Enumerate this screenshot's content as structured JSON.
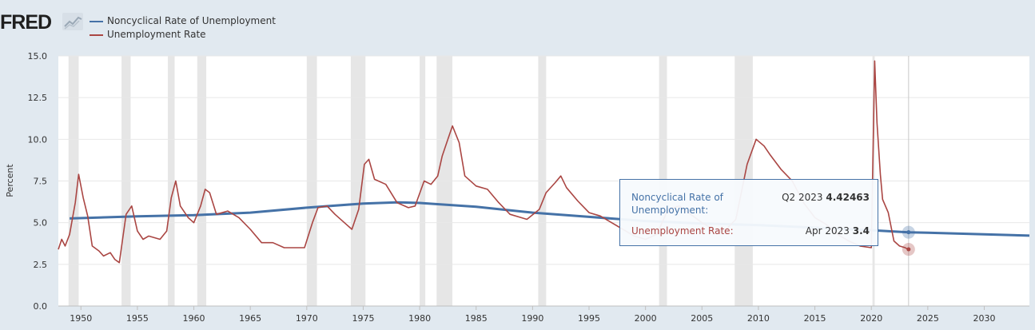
{
  "header": {
    "logo_text": "FRED",
    "logo_icon": "chart-line-icon"
  },
  "legend": [
    {
      "label": "Noncyclical Rate of Unemployment",
      "color": "#4572a7"
    },
    {
      "label": "Unemployment Rate",
      "color": "#aa4643"
    }
  ],
  "tooltip": {
    "rows": [
      {
        "name": "Noncyclical Rate of Unemployment:",
        "period": "Q2 2023",
        "value": "4.42463",
        "color": "#4572a7"
      },
      {
        "name": "Unemployment Rate:",
        "period": "Apr 2023",
        "value": "3.4",
        "color": "#aa4643"
      }
    ]
  },
  "chart_data": {
    "type": "line",
    "title": "",
    "xlabel": "",
    "ylabel": "Percent",
    "xlim": [
      1948,
      2034
    ],
    "ylim": [
      0,
      15
    ],
    "x_ticks": [
      "1950",
      "1955",
      "1960",
      "1965",
      "1970",
      "1975",
      "1980",
      "1985",
      "1990",
      "1995",
      "2000",
      "2005",
      "2010",
      "2015",
      "2020",
      "2025",
      "2030"
    ],
    "y_ticks": [
      "0.0",
      "2.5",
      "5.0",
      "7.5",
      "10.0",
      "12.5",
      "15.0"
    ],
    "grid": true,
    "legend_position": "top-left",
    "recessions": [
      [
        1948.9,
        1949.8
      ],
      [
        1953.6,
        1954.4
      ],
      [
        1957.7,
        1958.3
      ],
      [
        1960.3,
        1961.1
      ],
      [
        1970.0,
        1970.9
      ],
      [
        1973.9,
        1975.2
      ],
      [
        1980.0,
        1980.5
      ],
      [
        1981.5,
        1982.9
      ],
      [
        1990.5,
        1991.2
      ],
      [
        2001.2,
        2001.9
      ],
      [
        2007.9,
        2009.5
      ],
      [
        2020.1,
        2020.3
      ]
    ],
    "series": [
      {
        "name": "Noncyclical Rate of Unemployment",
        "color": "#4572a7",
        "points": [
          [
            1949,
            5.25
          ],
          [
            1955,
            5.38
          ],
          [
            1960,
            5.45
          ],
          [
            1965,
            5.6
          ],
          [
            1970,
            5.9
          ],
          [
            1975,
            6.15
          ],
          [
            1978,
            6.22
          ],
          [
            1980,
            6.18
          ],
          [
            1985,
            5.95
          ],
          [
            1990,
            5.6
          ],
          [
            1995,
            5.35
          ],
          [
            2000,
            5.1
          ],
          [
            2005,
            4.95
          ],
          [
            2010,
            4.85
          ],
          [
            2015,
            4.7
          ],
          [
            2020,
            4.55
          ],
          [
            2023.3,
            4.42463
          ],
          [
            2025,
            4.4
          ],
          [
            2030,
            4.3
          ],
          [
            2034,
            4.22
          ]
        ]
      },
      {
        "name": "Unemployment Rate",
        "color": "#aa4643",
        "points": [
          [
            1948,
            3.4
          ],
          [
            1948.3,
            4.0
          ],
          [
            1948.6,
            3.6
          ],
          [
            1949,
            4.3
          ],
          [
            1949.5,
            6.2
          ],
          [
            1949.8,
            7.9
          ],
          [
            1950.2,
            6.5
          ],
          [
            1950.6,
            5.4
          ],
          [
            1951,
            3.6
          ],
          [
            1951.6,
            3.3
          ],
          [
            1952,
            3.0
          ],
          [
            1952.6,
            3.2
          ],
          [
            1953,
            2.8
          ],
          [
            1953.4,
            2.6
          ],
          [
            1954,
            5.5
          ],
          [
            1954.5,
            6.0
          ],
          [
            1955,
            4.5
          ],
          [
            1955.5,
            4.0
          ],
          [
            1956,
            4.2
          ],
          [
            1957,
            4.0
          ],
          [
            1957.6,
            4.5
          ],
          [
            1958,
            6.5
          ],
          [
            1958.4,
            7.5
          ],
          [
            1958.8,
            6.0
          ],
          [
            1959.5,
            5.3
          ],
          [
            1960,
            5.0
          ],
          [
            1960.6,
            6.0
          ],
          [
            1961,
            7.0
          ],
          [
            1961.4,
            6.8
          ],
          [
            1962,
            5.5
          ],
          [
            1963,
            5.7
          ],
          [
            1964,
            5.3
          ],
          [
            1965,
            4.6
          ],
          [
            1966,
            3.8
          ],
          [
            1967,
            3.8
          ],
          [
            1968,
            3.5
          ],
          [
            1969,
            3.5
          ],
          [
            1969.8,
            3.5
          ],
          [
            1970.5,
            5.0
          ],
          [
            1971,
            5.9
          ],
          [
            1971.8,
            6.0
          ],
          [
            1972.5,
            5.5
          ],
          [
            1973.5,
            4.9
          ],
          [
            1974,
            4.6
          ],
          [
            1974.6,
            5.8
          ],
          [
            1975.1,
            8.5
          ],
          [
            1975.5,
            8.8
          ],
          [
            1976,
            7.6
          ],
          [
            1977,
            7.3
          ],
          [
            1978,
            6.2
          ],
          [
            1979,
            5.9
          ],
          [
            1979.6,
            6.0
          ],
          [
            1980.4,
            7.5
          ],
          [
            1981,
            7.3
          ],
          [
            1981.6,
            7.8
          ],
          [
            1982,
            9.0
          ],
          [
            1982.5,
            10.0
          ],
          [
            1982.9,
            10.8
          ],
          [
            1983.5,
            9.8
          ],
          [
            1984,
            7.8
          ],
          [
            1985,
            7.2
          ],
          [
            1986,
            7.0
          ],
          [
            1987,
            6.2
          ],
          [
            1988,
            5.5
          ],
          [
            1989,
            5.3
          ],
          [
            1989.5,
            5.2
          ],
          [
            1990.6,
            5.8
          ],
          [
            1991.2,
            6.8
          ],
          [
            1992,
            7.4
          ],
          [
            1992.5,
            7.8
          ],
          [
            1993,
            7.1
          ],
          [
            1994,
            6.3
          ],
          [
            1995,
            5.6
          ],
          [
            1996,
            5.4
          ],
          [
            1997,
            5.0
          ],
          [
            1998,
            4.6
          ],
          [
            1999,
            4.2
          ],
          [
            2000,
            4.0
          ],
          [
            2001,
            4.3
          ],
          [
            2002,
            5.8
          ],
          [
            2003,
            6.0
          ],
          [
            2004,
            5.5
          ],
          [
            2005,
            5.0
          ],
          [
            2006,
            4.6
          ],
          [
            2007,
            4.5
          ],
          [
            2008,
            5.2
          ],
          [
            2009,
            8.5
          ],
          [
            2009.8,
            10.0
          ],
          [
            2010.5,
            9.6
          ],
          [
            2011,
            9.1
          ],
          [
            2012,
            8.2
          ],
          [
            2013,
            7.5
          ],
          [
            2014,
            6.2
          ],
          [
            2015,
            5.3
          ],
          [
            2016,
            4.9
          ],
          [
            2017,
            4.3
          ],
          [
            2018,
            3.9
          ],
          [
            2019,
            3.6
          ],
          [
            2020,
            3.5
          ],
          [
            2020.3,
            14.7
          ],
          [
            2020.5,
            11.0
          ],
          [
            2020.8,
            7.9
          ],
          [
            2021,
            6.4
          ],
          [
            2021.5,
            5.6
          ],
          [
            2022,
            3.9
          ],
          [
            2022.5,
            3.6
          ],
          [
            2023,
            3.5
          ],
          [
            2023.25,
            3.4
          ]
        ]
      }
    ]
  }
}
